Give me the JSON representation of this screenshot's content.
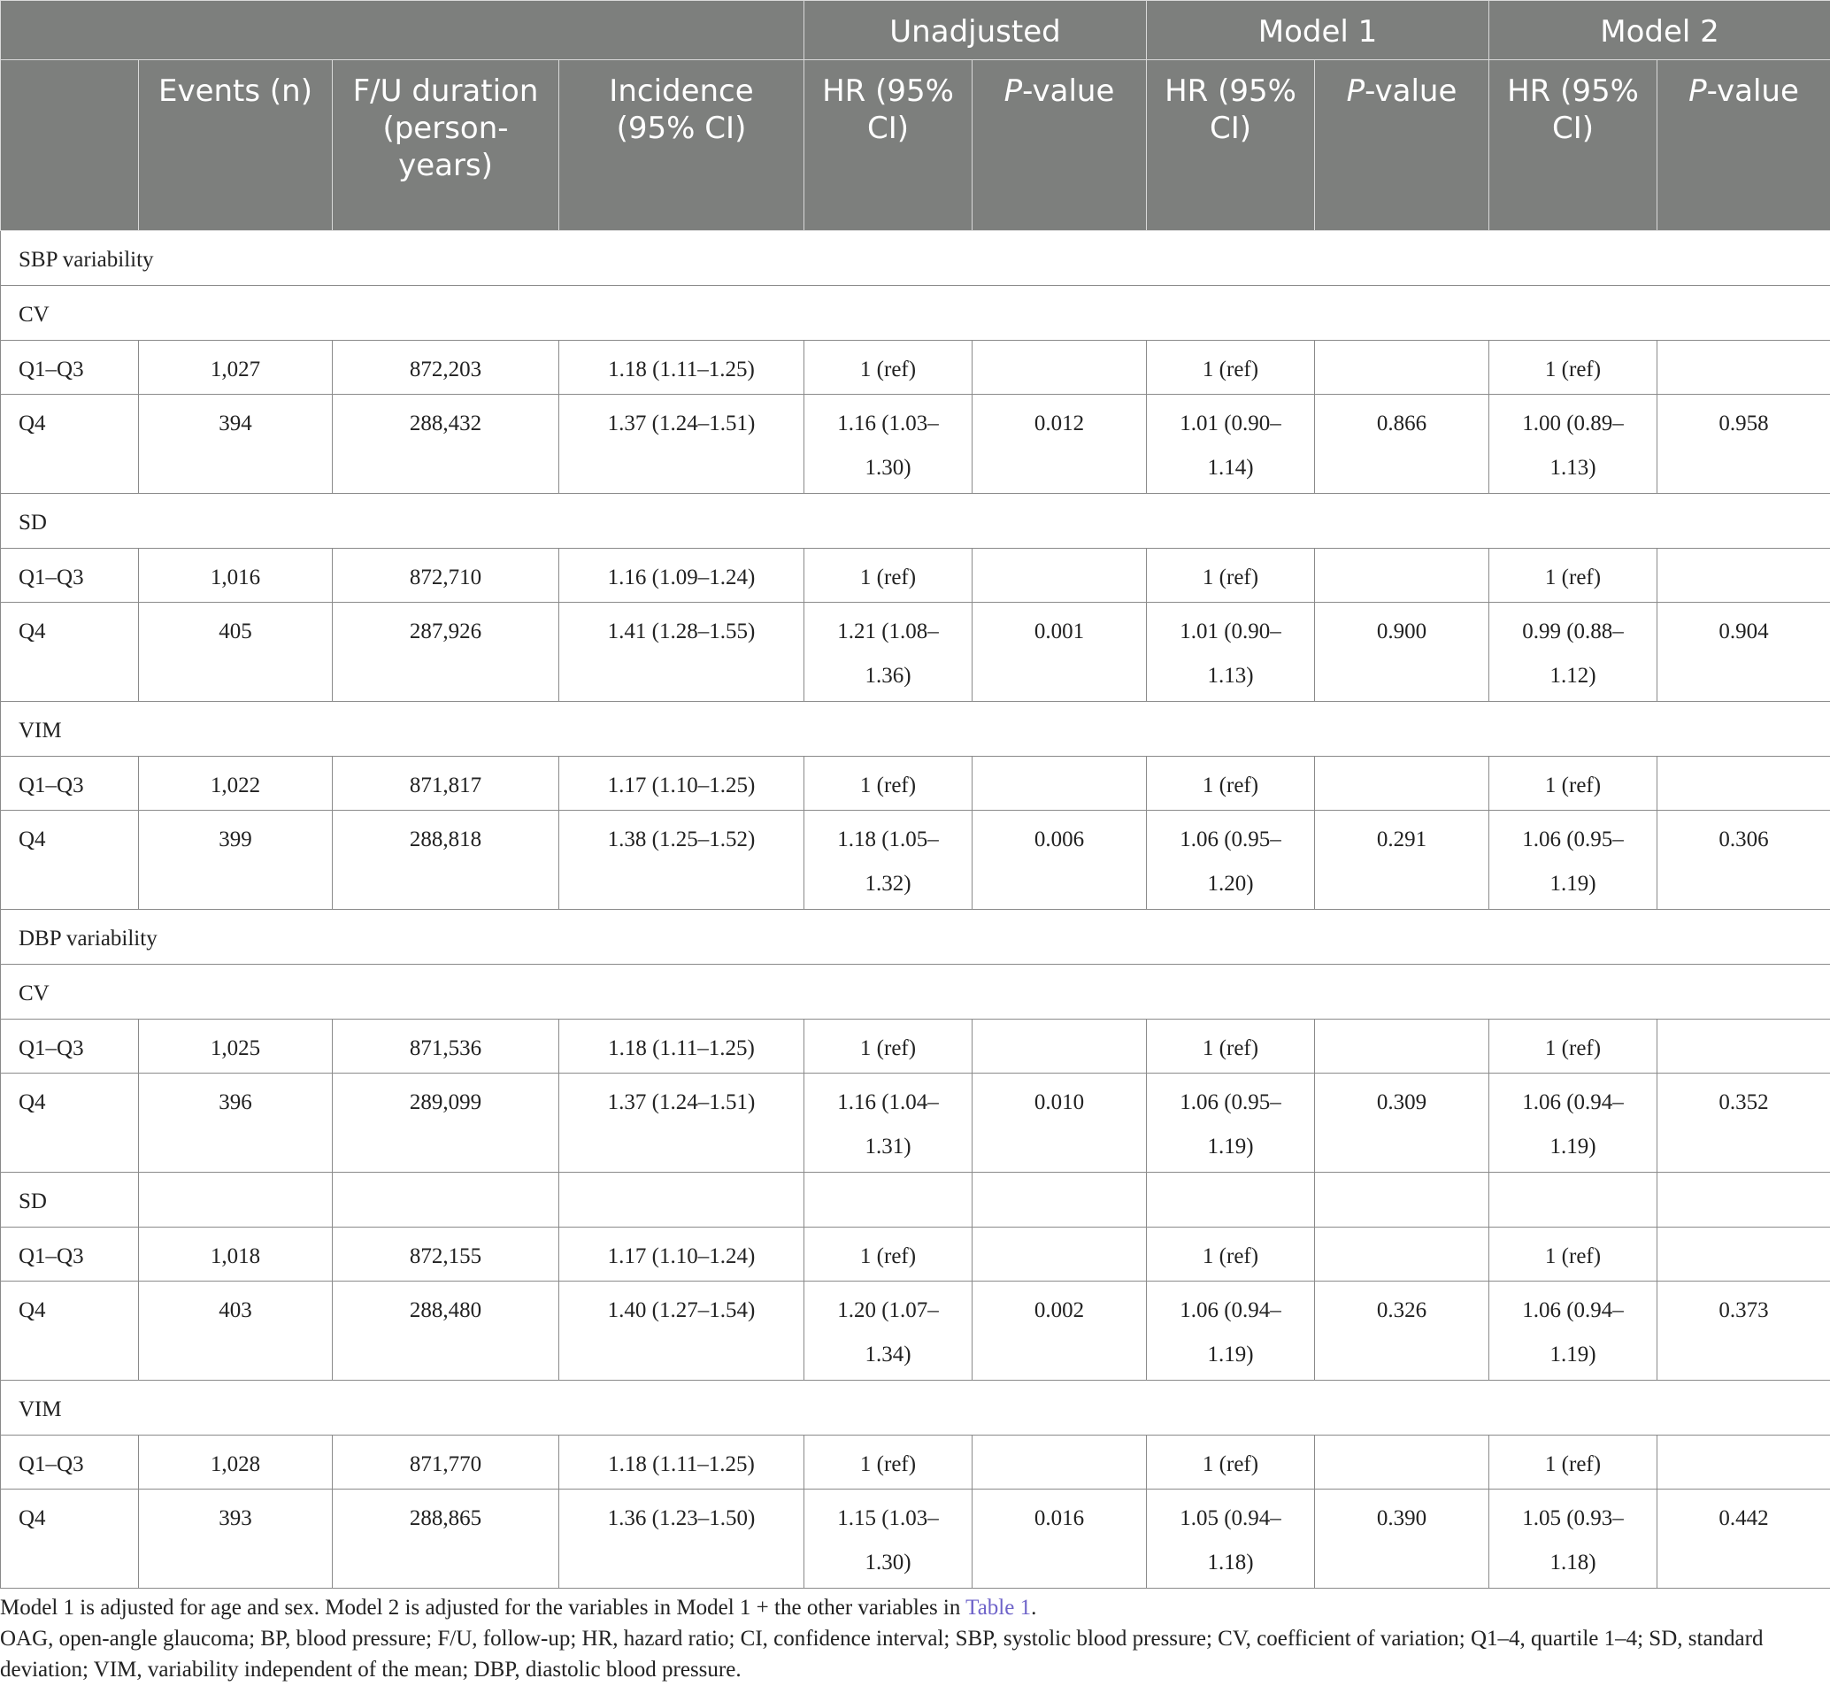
{
  "header": {
    "groups": [
      "Unadjusted",
      "Model 1",
      "Model 2"
    ],
    "columns": {
      "events": "Events (n)",
      "fu": "F/U duration (person-years)",
      "incidence": "Incidence (95% CI)",
      "hr": "HR (95% CI)",
      "p_prefix": "P",
      "p_suffix": "-value"
    }
  },
  "sections": [
    {
      "label": "SBP variability",
      "subgroups": [
        {
          "label": "CV",
          "rows": [
            {
              "group": "Q1–Q3",
              "events": "1,027",
              "fu": "872,203",
              "incidence": "1.18 (1.11–1.25)",
              "u_hr_a": "1 (ref)",
              "u_hr_b": "",
              "u_p": "",
              "m1_hr_a": "1 (ref)",
              "m1_hr_b": "",
              "m1_p": "",
              "m2_hr_a": "1 (ref)",
              "m2_hr_b": "",
              "m2_p": ""
            },
            {
              "group": "Q4",
              "events": "394",
              "fu": "288,432",
              "incidence": "1.37 (1.24–1.51)",
              "u_hr_a": "1.16 (1.03–",
              "u_hr_b": "1.30)",
              "u_p": "0.012",
              "m1_hr_a": "1.01 (0.90–",
              "m1_hr_b": "1.14)",
              "m1_p": "0.866",
              "m2_hr_a": "1.00 (0.89–",
              "m2_hr_b": "1.13)",
              "m2_p": "0.958"
            }
          ]
        },
        {
          "label": "SD",
          "rows": [
            {
              "group": "Q1–Q3",
              "events": "1,016",
              "fu": "872,710",
              "incidence": "1.16 (1.09–1.24)",
              "u_hr_a": "1 (ref)",
              "u_hr_b": "",
              "u_p": "",
              "m1_hr_a": "1 (ref)",
              "m1_hr_b": "",
              "m1_p": "",
              "m2_hr_a": "1 (ref)",
              "m2_hr_b": "",
              "m2_p": ""
            },
            {
              "group": "Q4",
              "events": "405",
              "fu": "287,926",
              "incidence": "1.41 (1.28–1.55)",
              "u_hr_a": "1.21 (1.08–",
              "u_hr_b": "1.36)",
              "u_p": "0.001",
              "m1_hr_a": "1.01 (0.90–",
              "m1_hr_b": "1.13)",
              "m1_p": "0.900",
              "m2_hr_a": "0.99 (0.88–",
              "m2_hr_b": "1.12)",
              "m2_p": "0.904"
            }
          ]
        },
        {
          "label": "VIM",
          "rows": [
            {
              "group": "Q1–Q3",
              "events": "1,022",
              "fu": "871,817",
              "incidence": "1.17 (1.10–1.25)",
              "u_hr_a": "1 (ref)",
              "u_hr_b": "",
              "u_p": "",
              "m1_hr_a": "1 (ref)",
              "m1_hr_b": "",
              "m1_p": "",
              "m2_hr_a": "1 (ref)",
              "m2_hr_b": "",
              "m2_p": ""
            },
            {
              "group": "Q4",
              "events": "399",
              "fu": "288,818",
              "incidence": "1.38 (1.25–1.52)",
              "u_hr_a": "1.18 (1.05–",
              "u_hr_b": "1.32)",
              "u_p": "0.006",
              "m1_hr_a": "1.06 (0.95–",
              "m1_hr_b": "1.20)",
              "m1_p": "0.291",
              "m2_hr_a": "1.06 (0.95–",
              "m2_hr_b": "1.19)",
              "m2_p": "0.306"
            }
          ]
        }
      ]
    },
    {
      "label": "DBP variability",
      "subgroups": [
        {
          "label": "CV",
          "rows": [
            {
              "group": "Q1–Q3",
              "events": "1,025",
              "fu": "871,536",
              "incidence": "1.18 (1.11–1.25)",
              "u_hr_a": "1 (ref)",
              "u_hr_b": "",
              "u_p": "",
              "m1_hr_a": "1 (ref)",
              "m1_hr_b": "",
              "m1_p": "",
              "m2_hr_a": "1 (ref)",
              "m2_hr_b": "",
              "m2_p": ""
            },
            {
              "group": "Q4",
              "events": "396",
              "fu": "289,099",
              "incidence": "1.37 (1.24–1.51)",
              "u_hr_a": "1.16 (1.04–",
              "u_hr_b": "1.31)",
              "u_p": "0.010",
              "m1_hr_a": "1.06 (0.95–",
              "m1_hr_b": "1.19)",
              "m1_p": "0.309",
              "m2_hr_a": "1.06 (0.94–",
              "m2_hr_b": "1.19)",
              "m2_p": "0.352"
            }
          ]
        },
        {
          "label": "SD",
          "rows": [
            {
              "group": "Q1–Q3",
              "events": "1,018",
              "fu": "872,155",
              "incidence": "1.17 (1.10–1.24)",
              "u_hr_a": "1 (ref)",
              "u_hr_b": "",
              "u_p": "",
              "m1_hr_a": "1 (ref)",
              "m1_hr_b": "",
              "m1_p": "",
              "m2_hr_a": "1 (ref)",
              "m2_hr_b": "",
              "m2_p": ""
            },
            {
              "group": "Q4",
              "events": "403",
              "fu": "288,480",
              "incidence": "1.40 (1.27–1.54)",
              "u_hr_a": "1.20 (1.07–",
              "u_hr_b": "1.34)",
              "u_p": "0.002",
              "m1_hr_a": "1.06 (0.94–",
              "m1_hr_b": "1.19)",
              "m1_p": "0.326",
              "m2_hr_a": "1.06 (0.94–",
              "m2_hr_b": "1.19)",
              "m2_p": "0.373"
            }
          ]
        },
        {
          "label": "VIM",
          "rows": [
            {
              "group": "Q1–Q3",
              "events": "1,028",
              "fu": "871,770",
              "incidence": "1.18 (1.11–1.25)",
              "u_hr_a": "1 (ref)",
              "u_hr_b": "",
              "u_p": "",
              "m1_hr_a": "1 (ref)",
              "m1_hr_b": "",
              "m1_p": "",
              "m2_hr_a": "1 (ref)",
              "m2_hr_b": "",
              "m2_p": ""
            },
            {
              "group": "Q4",
              "events": "393",
              "fu": "288,865",
              "incidence": "1.36 (1.23–1.50)",
              "u_hr_a": "1.15 (1.03–",
              "u_hr_b": "1.30)",
              "u_p": "0.016",
              "m1_hr_a": "1.05 (0.94–",
              "m1_hr_b": "1.18)",
              "m1_p": "0.390",
              "m2_hr_a": "1.05 (0.93–",
              "m2_hr_b": "1.18)",
              "m2_p": "0.442"
            }
          ]
        }
      ]
    }
  ],
  "footnotes": {
    "line1_text": "Model 1 is adjusted for age and sex. Model 2 is adjusted for the variables in Model 1 + the other variables in ",
    "line1_link": "Table 1",
    "line1_end": ".",
    "line2": "OAG, open-angle glaucoma; BP, blood pressure; F/U, follow-up; HR, hazard ratio; CI, confidence interval; SBP, systolic blood pressure; CV, coefficient of variation; Q1–4, quartile 1–4; SD, standard deviation; VIM, variability independent of the mean; DBP, diastolic blood pressure.",
    "link_color": "#6e63c9"
  },
  "colors": {
    "header_bg": "#7d7f7d",
    "header_text": "#ffffff"
  }
}
